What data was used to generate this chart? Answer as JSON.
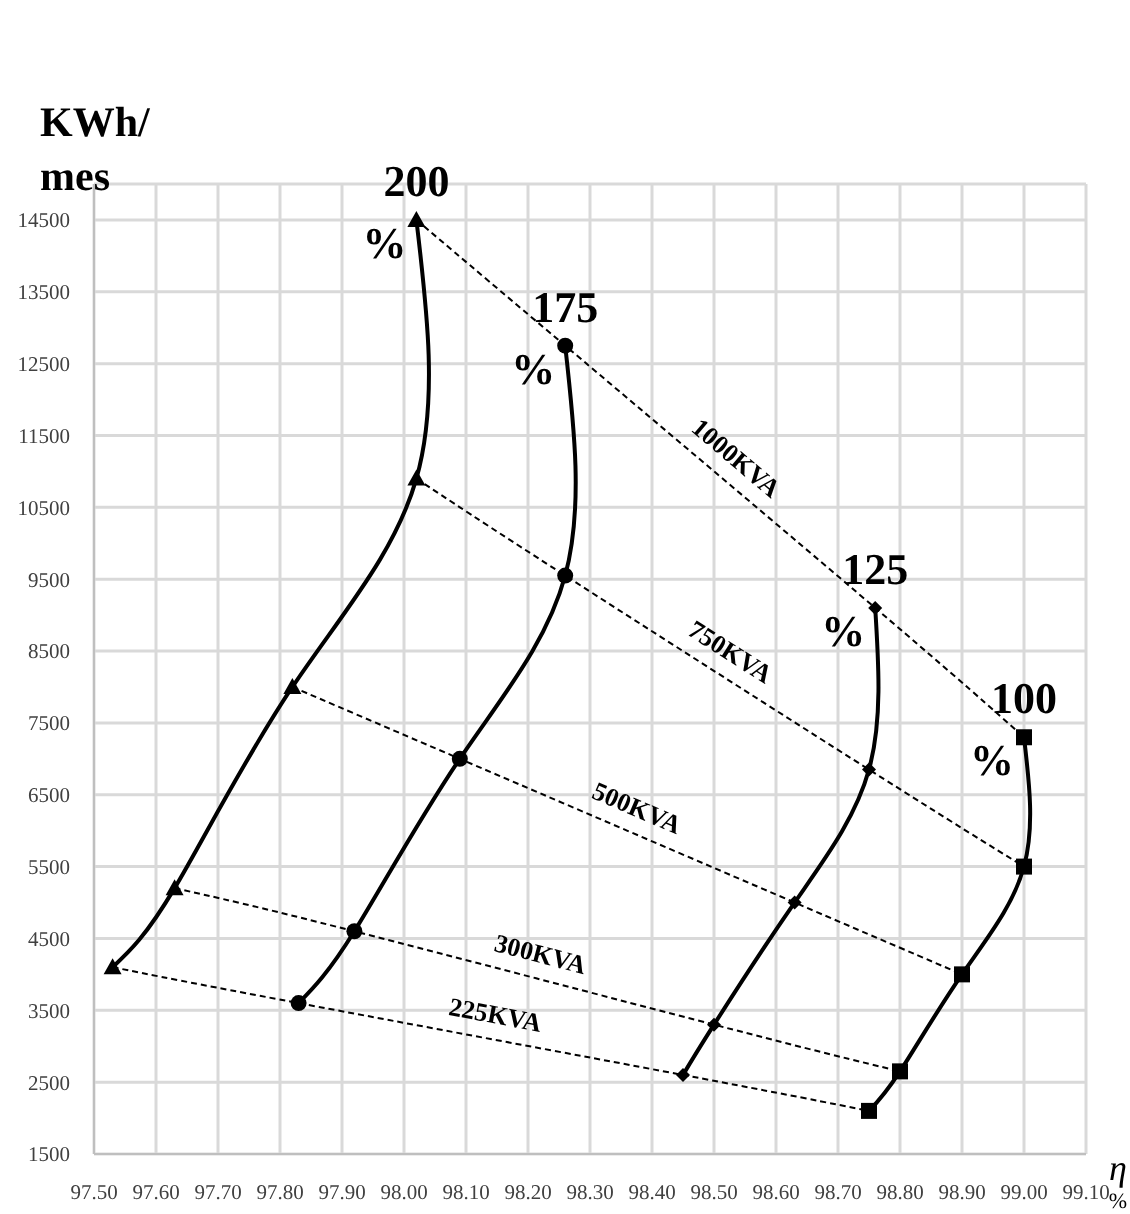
{
  "chart_data": {
    "type": "line",
    "xlabel": "η %",
    "ylabel": "KWh/mes",
    "xlim": [
      97.5,
      99.1
    ],
    "xticks": [
      {
        "value": 97.5,
        "label": "97.50"
      },
      {
        "value": 97.6,
        "label": "97.60"
      },
      {
        "value": 97.7,
        "label": "97.70"
      },
      {
        "value": 97.8,
        "label": "97.80"
      },
      {
        "value": 97.9,
        "label": "97.90"
      },
      {
        "value": 98.0,
        "label": "98.00"
      },
      {
        "value": 98.1,
        "label": "98.10"
      },
      {
        "value": 98.2,
        "label": "98.20"
      },
      {
        "value": 98.3,
        "label": "98.30"
      },
      {
        "value": 98.4,
        "label": "98.40"
      },
      {
        "value": 98.5,
        "label": "98.50"
      },
      {
        "value": 98.6,
        "label": "98.60"
      },
      {
        "value": 98.7,
        "label": "98.70"
      },
      {
        "value": 98.8,
        "label": "98.80"
      },
      {
        "value": 98.9,
        "label": "98.90"
      },
      {
        "value": 99.0,
        "label": "99.00"
      },
      {
        "value": 99.1,
        "label": "99.10"
      }
    ],
    "ylim": [
      1500,
      15000
    ],
    "yticks": [
      1500,
      2500,
      3500,
      4500,
      5500,
      6500,
      7500,
      8500,
      9500,
      10500,
      11500,
      12500,
      13500,
      14500
    ],
    "grid": true,
    "series": [
      {
        "name": "200 %",
        "color": "#000000",
        "marker": "triangle",
        "line_style": "solid",
        "x": [
          98.02,
          98.02,
          97.82,
          97.63,
          97.53
        ],
        "values": [
          14500,
          10900,
          8000,
          5200,
          4100
        ]
      },
      {
        "name": "175 %",
        "color": "#000000",
        "marker": "circle",
        "line_style": "solid",
        "x": [
          98.26,
          98.26,
          98.09,
          97.92,
          97.83
        ],
        "values": [
          12750,
          9550,
          7000,
          4600,
          3600
        ]
      },
      {
        "name": "125 %",
        "color": "#000000",
        "marker": "diamond",
        "line_style": "solid",
        "x": [
          98.76,
          98.75,
          98.63,
          98.5,
          98.45
        ],
        "values": [
          9100,
          6850,
          5000,
          3300,
          2600
        ]
      },
      {
        "name": "100 %",
        "color": "#000000",
        "marker": "square",
        "line_style": "solid",
        "x": [
          99.0,
          99.0,
          98.9,
          98.8,
          98.75
        ],
        "values": [
          7300,
          5500,
          4000,
          2650,
          2100
        ]
      },
      {
        "name": "1000KVA",
        "color": "#000000",
        "marker": "none",
        "line_style": "dashed",
        "x": [
          98.02,
          98.26,
          98.76,
          99.0
        ],
        "values": [
          14500,
          12750,
          9100,
          7300
        ]
      },
      {
        "name": "750KVA",
        "color": "#000000",
        "marker": "none",
        "line_style": "dashed",
        "x": [
          98.02,
          98.26,
          98.75,
          99.0
        ],
        "values": [
          10900,
          9550,
          6850,
          5500
        ]
      },
      {
        "name": "500KVA",
        "color": "#000000",
        "marker": "none",
        "line_style": "dashed",
        "x": [
          97.82,
          98.09,
          98.63,
          98.9
        ],
        "values": [
          8000,
          7000,
          5000,
          4000
        ]
      },
      {
        "name": "300KVA",
        "color": "#000000",
        "marker": "none",
        "line_style": "dashed",
        "x": [
          97.63,
          97.92,
          98.5,
          98.8
        ],
        "values": [
          5200,
          4600,
          3300,
          2650
        ]
      },
      {
        "name": "225KVA",
        "color": "#000000",
        "marker": "none",
        "line_style": "dashed",
        "x": [
          97.53,
          97.83,
          98.45,
          98.75
        ],
        "values": [
          4100,
          3600,
          2600,
          2100
        ]
      }
    ]
  }
}
